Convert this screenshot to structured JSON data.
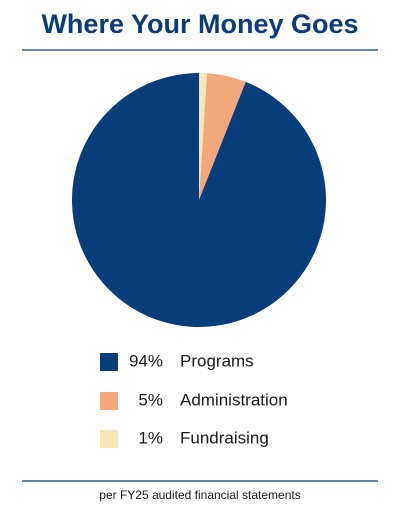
{
  "chart_data": {
    "type": "pie",
    "title": "Where Your Money Goes",
    "categories": [
      "Programs",
      "Administration",
      "Fundraising"
    ],
    "values": [
      94,
      5,
      1
    ],
    "value_labels": [
      "94%",
      "5%",
      "1%"
    ],
    "colors": [
      "#083d7c",
      "#f4a77c",
      "#f5e7b8"
    ],
    "footnote": "per FY25 audited financial statements"
  }
}
